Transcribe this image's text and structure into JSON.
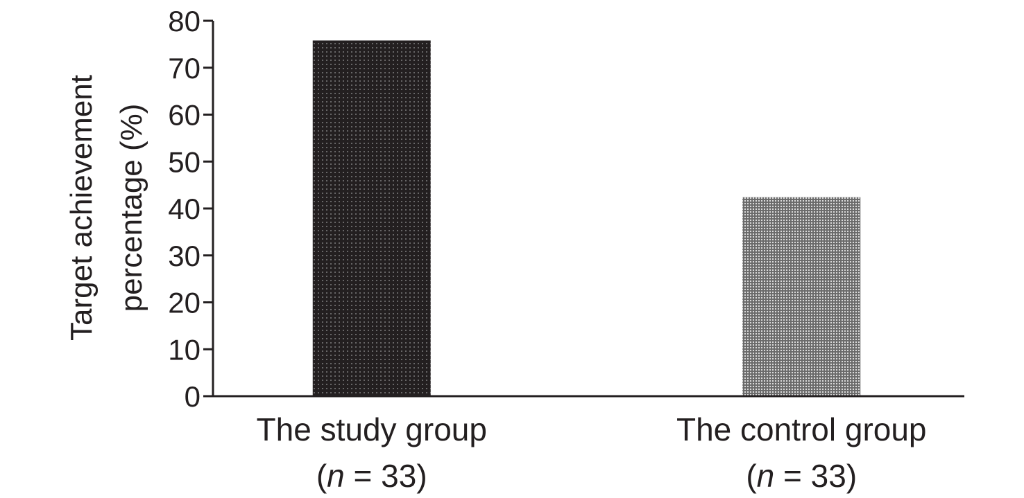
{
  "chart_data": {
    "type": "bar",
    "categories": [
      "The study group",
      "The control group"
    ],
    "category_sublabels": [
      {
        "prefix": "(",
        "italic": "n",
        "suffix": " = 33)"
      },
      {
        "prefix": "(",
        "italic": "n",
        "suffix": " = 33)"
      }
    ],
    "values": [
      75.8,
      42.4
    ],
    "ylabel_lines": [
      "Target achievement",
      "percentage (%)"
    ],
    "ylim": [
      0,
      80
    ],
    "yticks": [
      0,
      10,
      20,
      30,
      40,
      50,
      60,
      70,
      80
    ],
    "grid": false,
    "bar_colors": [
      "#231f20",
      "#8a8a8a"
    ]
  }
}
